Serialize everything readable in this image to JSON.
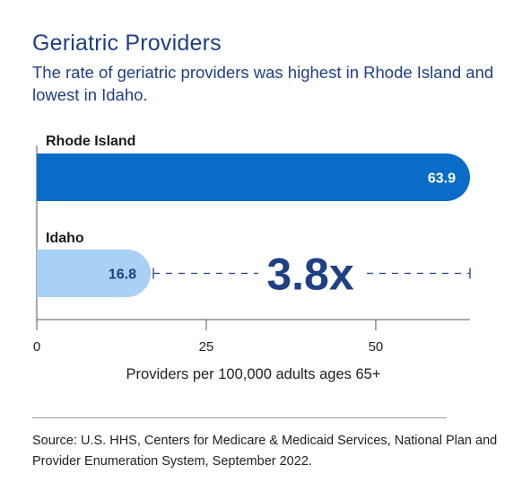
{
  "chart_data": {
    "type": "bar",
    "orientation": "horizontal",
    "title": "Geriatric Providers",
    "subtitle": "The rate of geriatric providers was highest in Rhode Island and lowest in Idaho.",
    "categories": [
      "Rhode Island",
      "Idaho"
    ],
    "values": [
      63.9,
      16.8
    ],
    "value_labels": [
      "63.9",
      "16.8"
    ],
    "xlabel": "Providers per 100,000 adults ages 65+",
    "ylabel": "",
    "xlim": [
      0,
      63.9
    ],
    "x_ticks": [
      0,
      25,
      50
    ],
    "grid": false,
    "annotation": "3.8x",
    "source": "Source: U.S. HHS, Centers for Medicare & Medicaid Services, National Plan and Provider Enumeration System, September 2022.",
    "colors": {
      "bar_high": "#0b6cc8",
      "bar_low": "#a9d1f5",
      "value_high": "#ffffff",
      "value_low": "#1f3f86",
      "title": "#1f3f86",
      "annotation": "#1f3f86",
      "dash_line": "#1f3f86"
    }
  }
}
